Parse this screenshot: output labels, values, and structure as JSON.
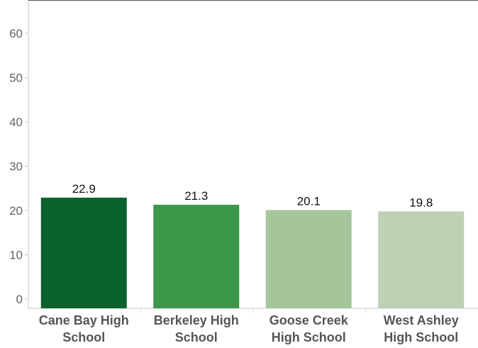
{
  "chart_data": {
    "type": "bar",
    "title": "",
    "xlabel": "",
    "ylabel": "",
    "ylim": [
      0,
      67
    ],
    "yticks": [
      0,
      10,
      20,
      30,
      40,
      50,
      60
    ],
    "grid": false,
    "legend": "none",
    "categories": [
      [
        "Cane Bay High",
        "School"
      ],
      [
        "Berkeley High",
        "School"
      ],
      [
        "Goose Creek",
        "High School"
      ],
      [
        "West Ashley",
        "High School"
      ]
    ],
    "values": [
      22.9,
      21.3,
      20.1,
      19.8
    ],
    "value_labels": [
      "22.9",
      "21.3",
      "20.1",
      "19.8"
    ],
    "colors": [
      "#0a622c",
      "#3b974a",
      "#a7c59b",
      "#bdd1b5"
    ]
  }
}
